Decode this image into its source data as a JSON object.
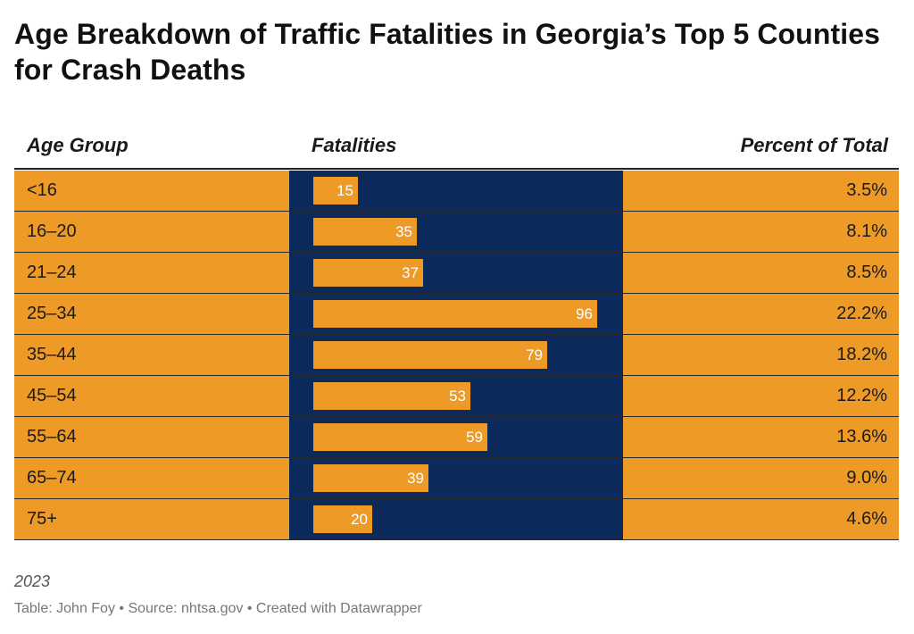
{
  "title": "Age Breakdown of Traffic Fatalities in Georgia’s Top 5 Counties for Crash Deaths",
  "columns": {
    "age": "Age Group",
    "fatalities": "Fatalities",
    "percent": "Percent of Total"
  },
  "rows": [
    {
      "age": "<16",
      "fatalities": "15",
      "percent": "3.5%"
    },
    {
      "age": "16–20",
      "fatalities": "35",
      "percent": "8.1%"
    },
    {
      "age": "21–24",
      "fatalities": "37",
      "percent": "8.5%"
    },
    {
      "age": "25–34",
      "fatalities": "96",
      "percent": "22.2%"
    },
    {
      "age": "35–44",
      "fatalities": "79",
      "percent": "18.2%"
    },
    {
      "age": "45–54",
      "fatalities": "53",
      "percent": "12.2%"
    },
    {
      "age": "55–64",
      "fatalities": "59",
      "percent": "13.6%"
    },
    {
      "age": "65–74",
      "fatalities": "39",
      "percent": "9.0%"
    },
    {
      "age": "75+",
      "fatalities": "20",
      "percent": "4.6%"
    }
  ],
  "subtitle": "2023",
  "footer": "Table: John Foy • Source: nhtsa.gov • Created with Datawrapper",
  "colors": {
    "accent": "#ee9a26",
    "bar_column_bg": "#0c2b5c",
    "bar_label": "#ffffff"
  },
  "chart_data": {
    "type": "table",
    "title": "Age Breakdown of Traffic Fatalities in Georgia’s Top 5 Counties for Crash Deaths",
    "columns": [
      "Age Group",
      "Fatalities",
      "Percent of Total"
    ],
    "categories": [
      "<16",
      "16–20",
      "21–24",
      "25–34",
      "35–44",
      "45–54",
      "55–64",
      "65–74",
      "75+"
    ],
    "series": [
      {
        "name": "Fatalities",
        "values": [
          15,
          35,
          37,
          96,
          79,
          53,
          59,
          39,
          20
        ]
      },
      {
        "name": "Percent of Total",
        "values": [
          3.5,
          8.1,
          8.5,
          22.2,
          18.2,
          12.2,
          13.6,
          9.0,
          4.6
        ]
      }
    ],
    "xlim": [
      0,
      96
    ]
  }
}
